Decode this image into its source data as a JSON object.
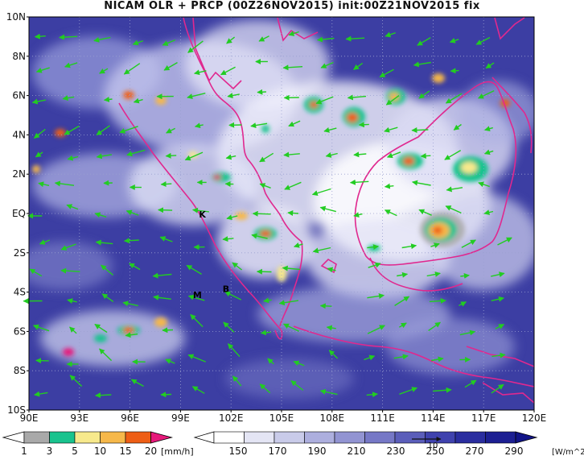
{
  "title": "NICAM OLR + PRCP (00Z26NOV2015) init:00Z21NOV2015 fix",
  "map": {
    "lat_ticks": [
      "10N",
      "8N",
      "6N",
      "4N",
      "2N",
      "EQ",
      "2S",
      "4S",
      "6S",
      "8S",
      "10S"
    ],
    "lon_ticks": [
      "90E",
      "93E",
      "96E",
      "99E",
      "102E",
      "105E",
      "108E",
      "111E",
      "114E",
      "117E",
      "120E"
    ],
    "region_labels": [
      {
        "text": "K",
        "lon": 100.3,
        "lat": -0.2
      },
      {
        "text": "M",
        "lon": 100.0,
        "lat": -4.3
      },
      {
        "text": "B",
        "lon": 101.7,
        "lat": -4.0
      }
    ],
    "colors": {
      "ocean_base": "#3c3ea3",
      "coastline": "#e0288f",
      "wind_vector": "#22cc22",
      "grid": "#9aa0d0"
    }
  },
  "legend_precip": {
    "labels": [
      "1",
      "3",
      "5",
      "10",
      "15",
      "20"
    ],
    "unit": "[mm/h]",
    "colors": [
      "#a9a9a9",
      "#19c38e",
      "#f7e98c",
      "#f6b84a",
      "#ee5e15",
      "#e6197a"
    ]
  },
  "legend_olr": {
    "labels": [
      "150",
      "170",
      "190",
      "210",
      "230",
      "250",
      "270",
      "290"
    ],
    "unit": "[W/m^2]",
    "colors": [
      "#ffffff",
      "#e4e5f4",
      "#c9cbe9",
      "#adafde",
      "#9294d2",
      "#7678c6",
      "#5b5eba",
      "#3f42ae",
      "#2a2d9f",
      "#1c1f92",
      "#111487"
    ],
    "vector_ref": "10"
  }
}
